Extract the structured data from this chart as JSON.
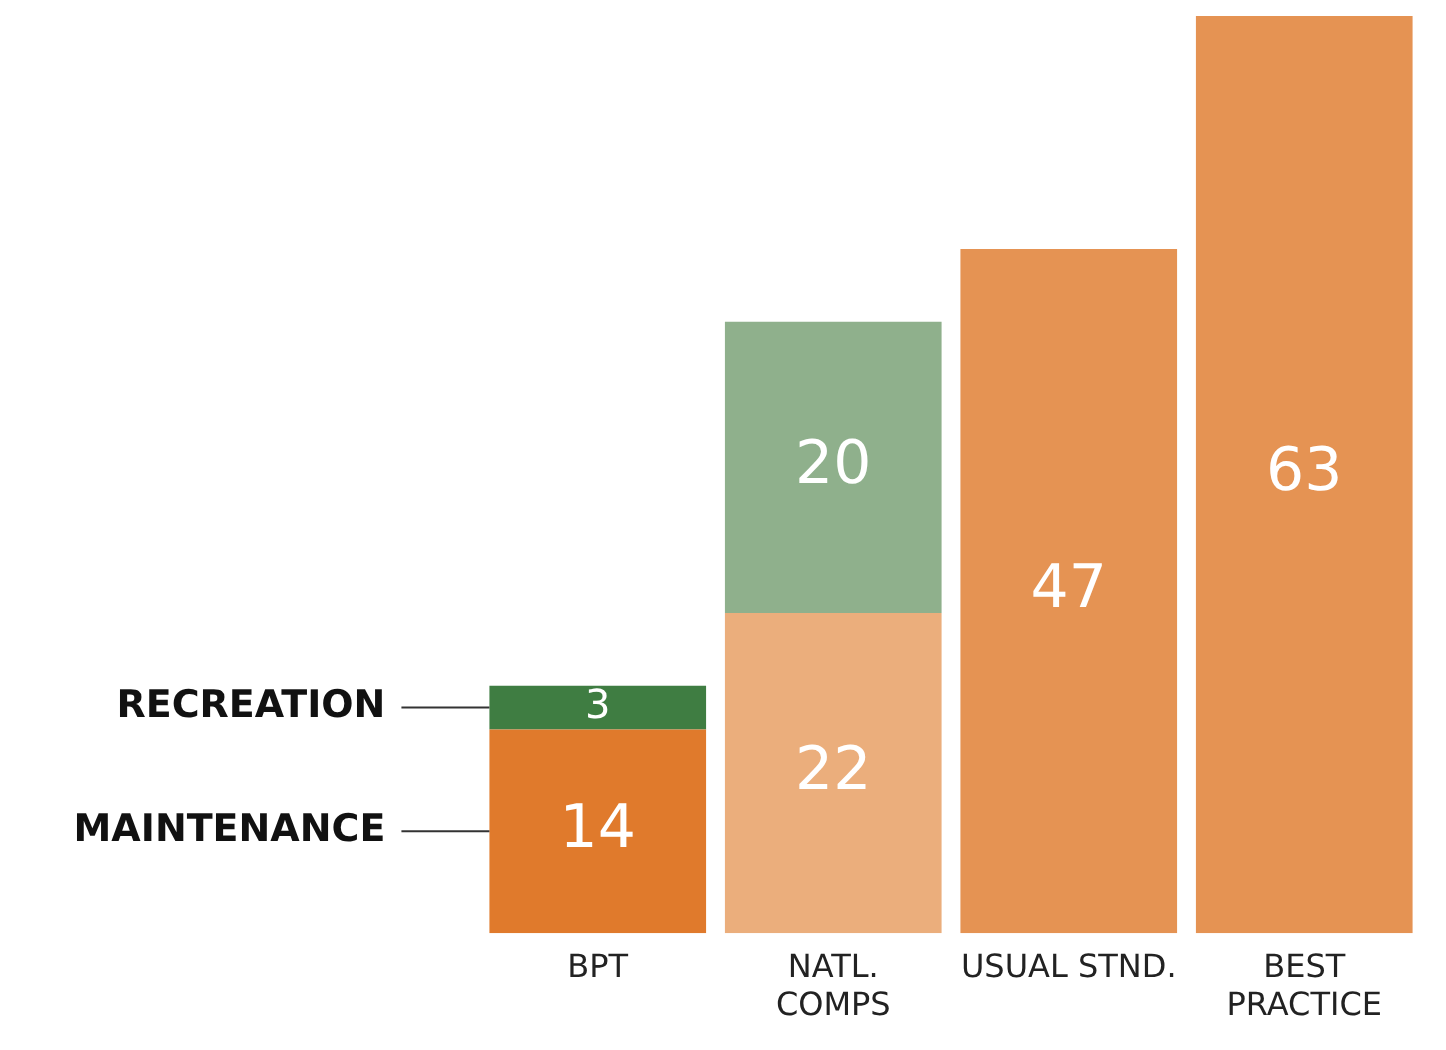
{
  "chart_data": {
    "type": "bar",
    "stacked": true,
    "categories": [
      "BPT",
      "NATL.\nCOMPS",
      "USUAL STND.",
      "BEST\nPRACTICE"
    ],
    "series": [
      {
        "name": "MAINTENANCE",
        "colors": [
          "#e07a2c",
          "#ebae7c",
          "#e59353",
          "#e59353"
        ],
        "values": [
          14,
          22,
          47,
          63
        ]
      },
      {
        "name": "RECREATION",
        "colors": [
          "#3f7d42",
          "#8fb08c",
          null,
          null
        ],
        "values": [
          3,
          20,
          null,
          null
        ]
      }
    ],
    "data_labels": true,
    "tick_labels": "x",
    "grid": false,
    "legend": false
  }
}
